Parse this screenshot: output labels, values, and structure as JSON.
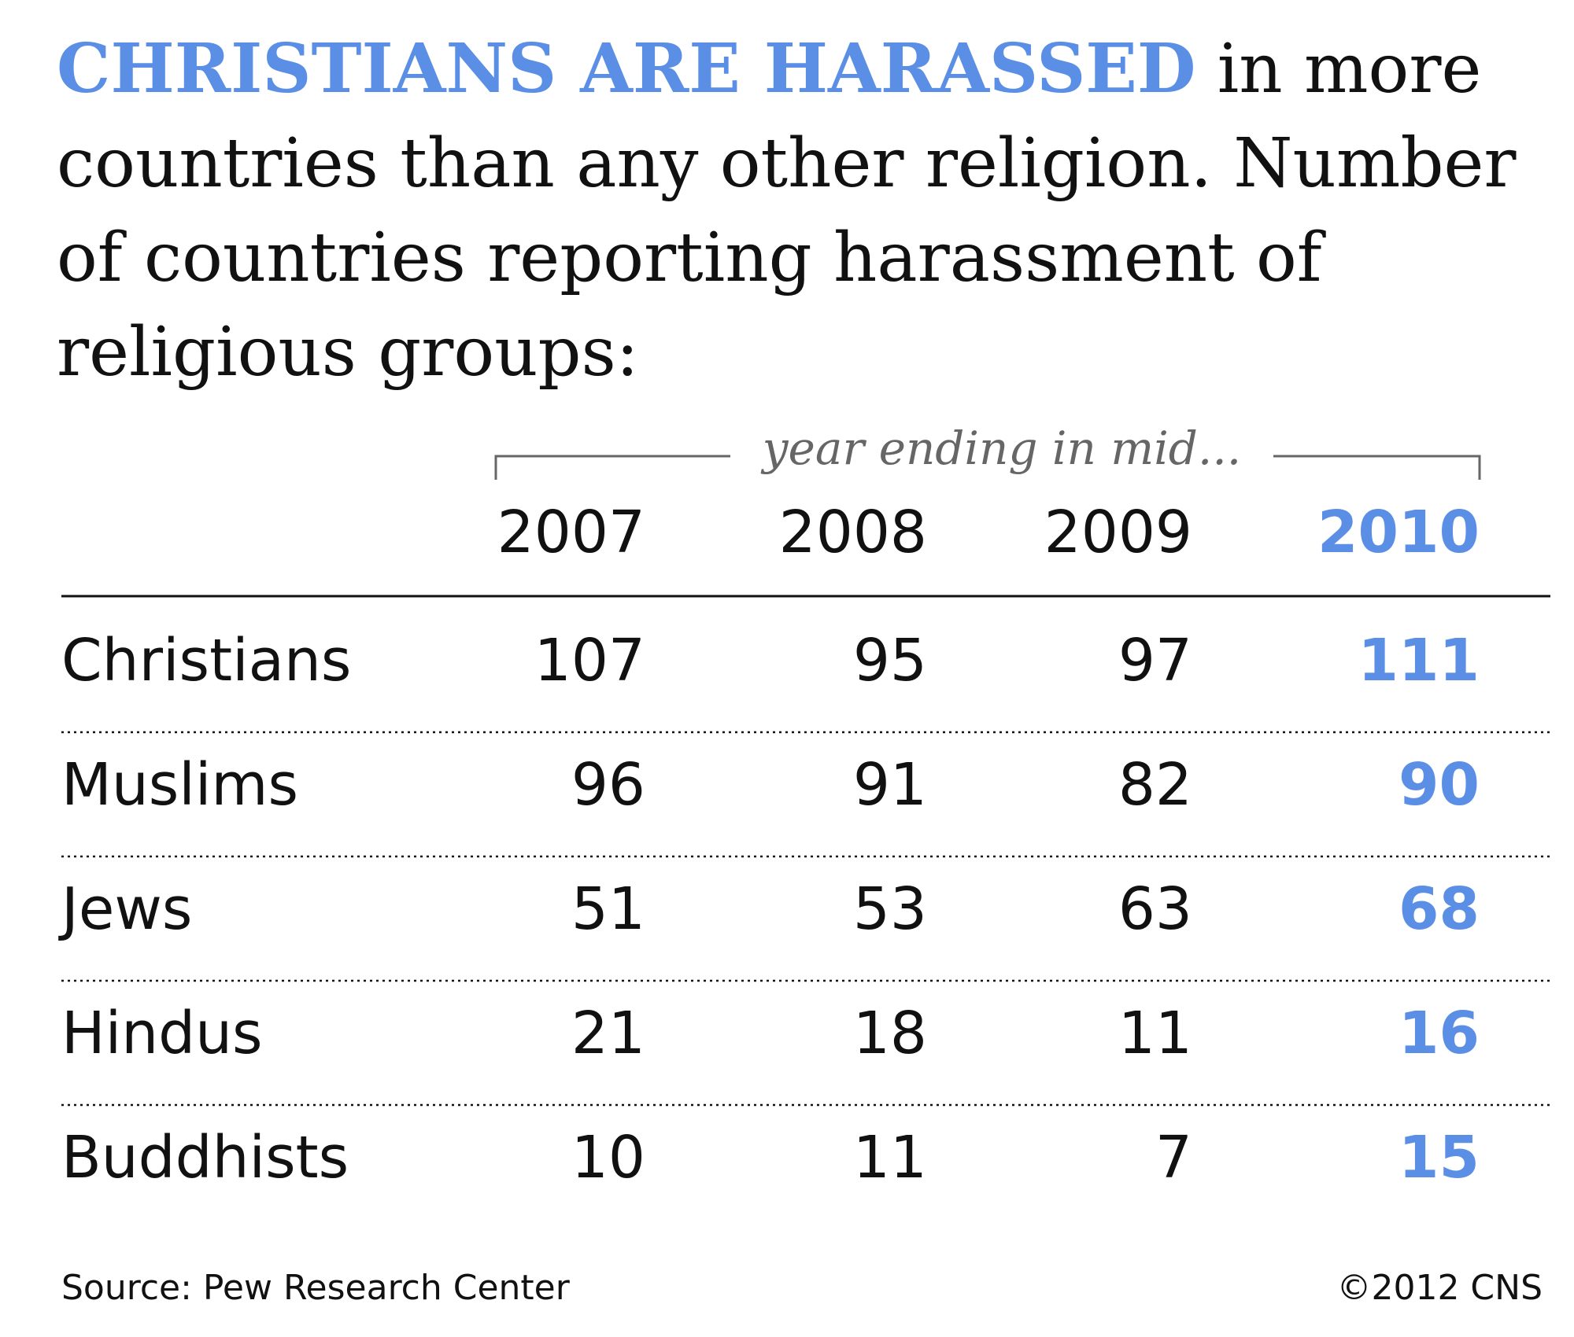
{
  "headline": {
    "highlight": "CHRISTIANS ARE HARASSED",
    "rest": " in more countries than any other religion. Number of countries reporting harassment of religious groups:"
  },
  "colors": {
    "accent": "#5b8fe6",
    "text": "#111111",
    "muted": "#666666"
  },
  "chart_data": {
    "type": "table",
    "column_group_label": "year ending in mid...",
    "categories": [
      "2007",
      "2008",
      "2009",
      "2010"
    ],
    "highlight_column": "2010",
    "rows": [
      {
        "label": "Christians",
        "values": [
          107,
          95,
          97,
          111
        ]
      },
      {
        "label": "Muslims",
        "values": [
          96,
          91,
          82,
          90
        ]
      },
      {
        "label": "Jews",
        "values": [
          51,
          53,
          63,
          68
        ]
      },
      {
        "label": "Hindus",
        "values": [
          21,
          18,
          11,
          16
        ]
      },
      {
        "label": "Buddhists",
        "values": [
          10,
          11,
          7,
          15
        ]
      }
    ]
  },
  "footer": {
    "source": "Source: Pew Research Center",
    "credit": "©2012 CNS"
  }
}
